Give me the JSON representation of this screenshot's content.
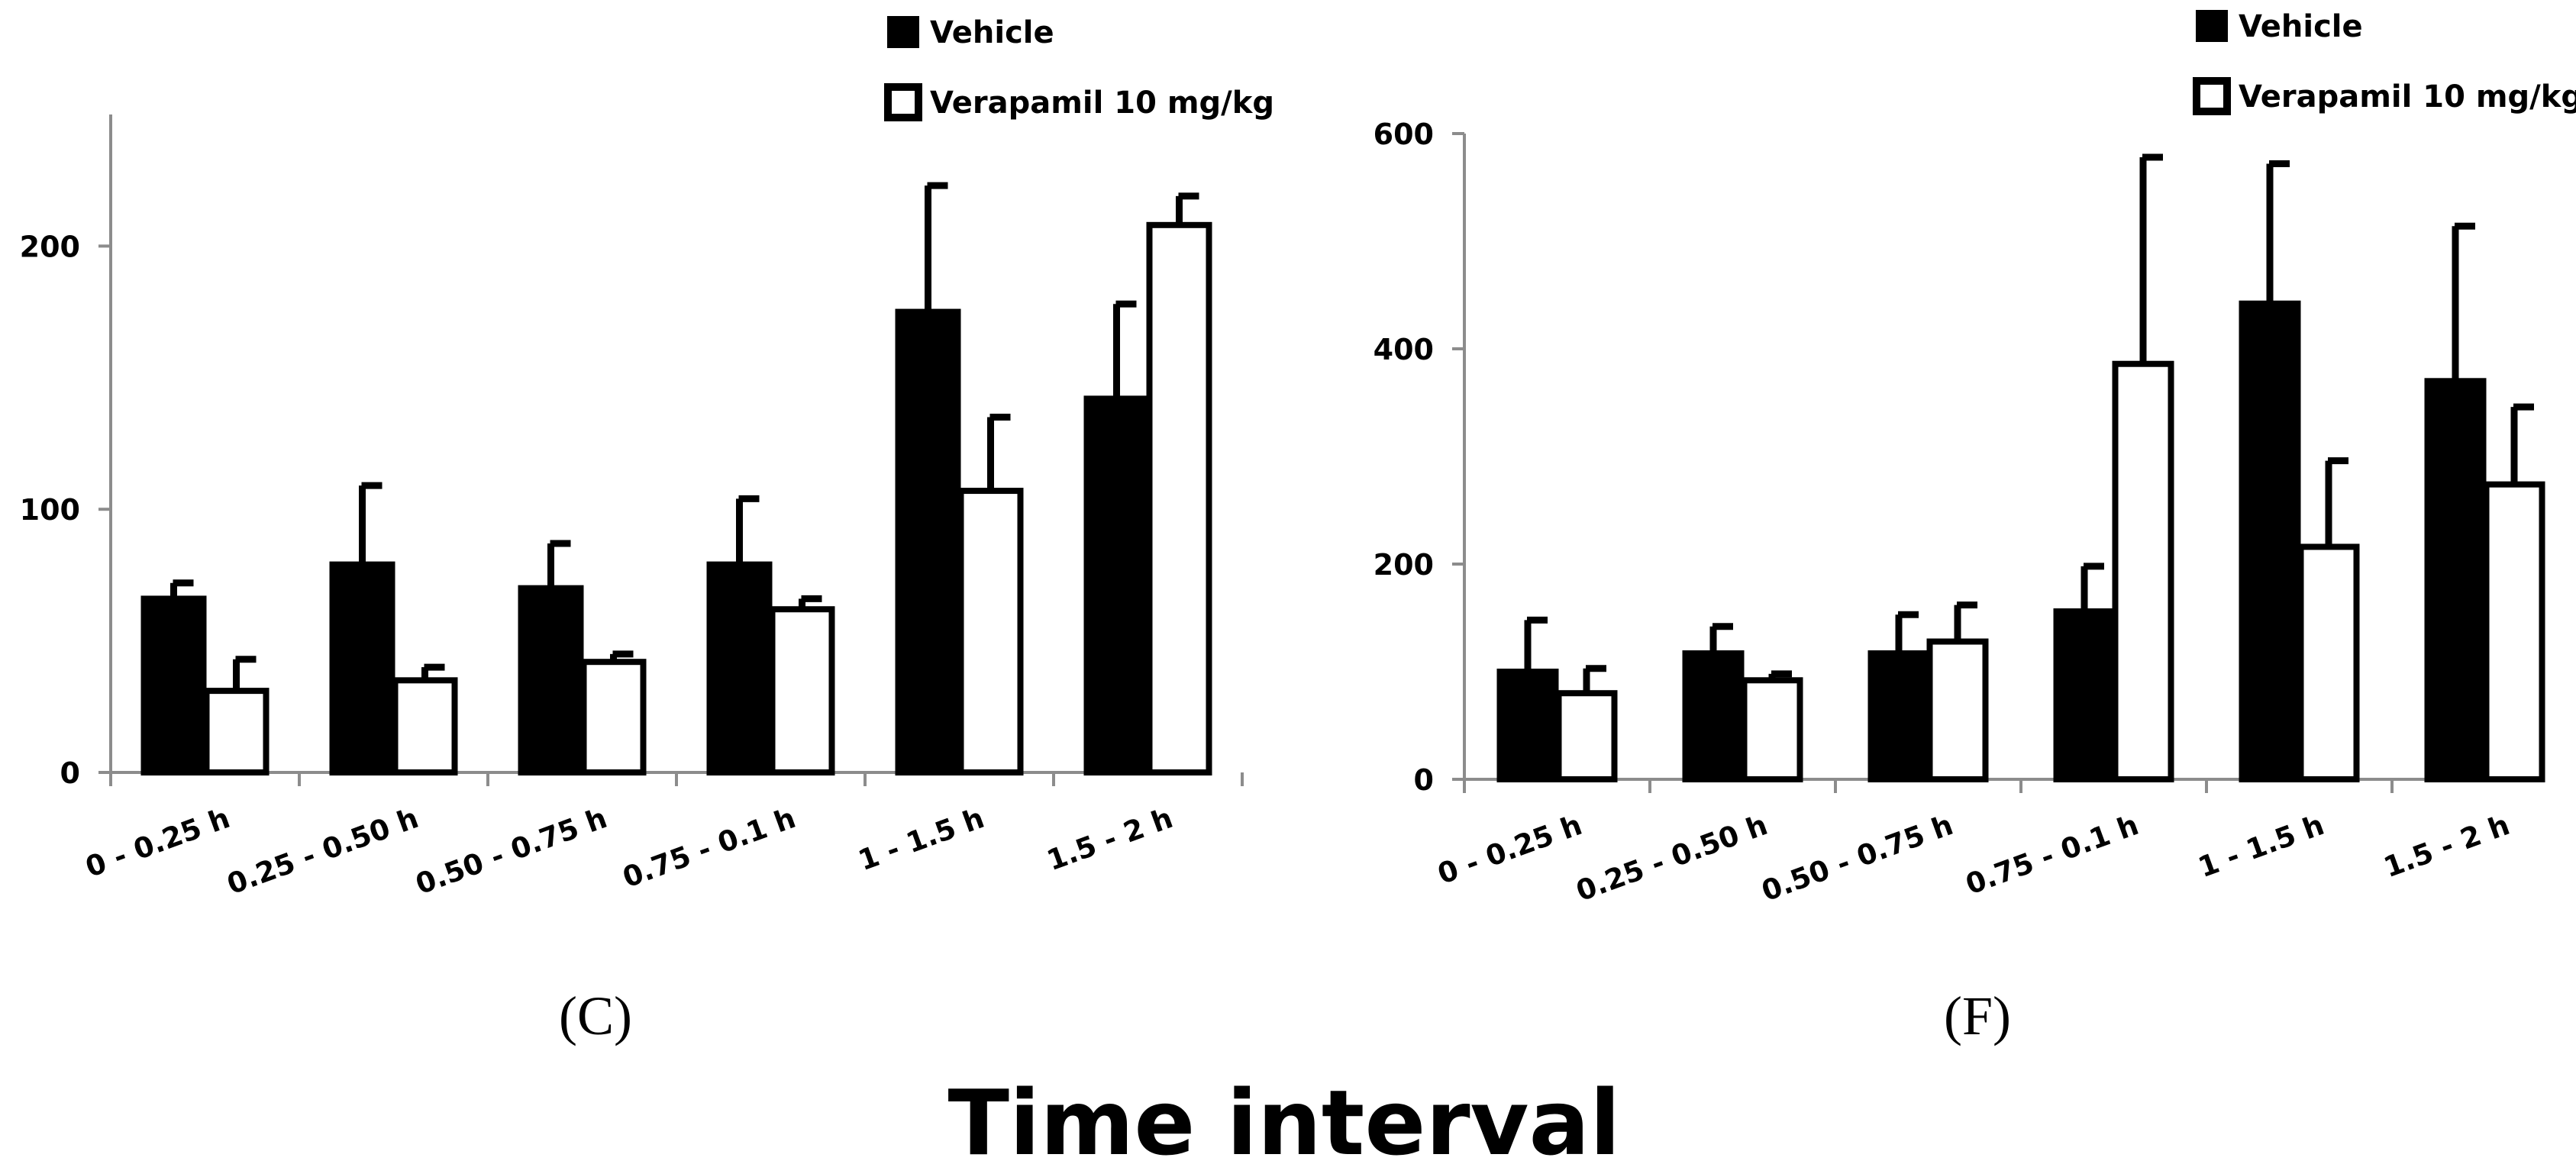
{
  "figure": {
    "xlabel": "Time interval"
  },
  "colors": {
    "vehicle_fill": "#000000",
    "verapamil_fill": "#ffffff",
    "stroke": "#000000",
    "axis": "#8c8c8c"
  },
  "chart_data": [
    {
      "type": "bar",
      "panel_label": "(C)",
      "categories": [
        "0 - 0.25 h",
        "0.25 - 0.50 h",
        "0.50 - 0.75 h",
        "0.75 - 0.1 h",
        "1 - 1.5 h",
        "1.5 - 2 h"
      ],
      "series": [
        {
          "name": "Vehicle",
          "values": [
            66,
            79,
            70,
            79,
            175,
            142
          ],
          "errors": [
            6,
            30,
            17,
            25,
            48,
            36
          ]
        },
        {
          "name": "Verapamil 10 mg/kg",
          "values": [
            31,
            35,
            42,
            62,
            107,
            208
          ],
          "errors": [
            12,
            5,
            3,
            4,
            28,
            11
          ]
        }
      ],
      "yticks": [
        "0",
        "100",
        "200"
      ],
      "ylim": [
        0,
        250
      ],
      "legend_position": "top-right",
      "xlabel": "",
      "ylabel": ""
    },
    {
      "type": "bar",
      "panel_label": "(F)",
      "categories": [
        "0 - 0.25 h",
        "0.25 - 0.50 h",
        "0.50 - 0.75 h",
        "0.75 - 0.1 h",
        "1 - 1.5 h",
        "1.5 - 2 h"
      ],
      "series": [
        {
          "name": "Vehicle",
          "values": [
            100,
            117,
            117,
            156,
            442,
            370
          ],
          "errors": [
            48,
            25,
            36,
            42,
            130,
            144
          ]
        },
        {
          "name": "Verapamil 10 mg/kg",
          "values": [
            80,
            92,
            128,
            386,
            216,
            274
          ],
          "errors": [
            23,
            6,
            34,
            192,
            80,
            72
          ]
        }
      ],
      "yticks": [
        "0",
        "200",
        "400",
        "600"
      ],
      "ylim": [
        0,
        600
      ],
      "legend_position": "top-right",
      "xlabel": "",
      "ylabel": ""
    }
  ]
}
